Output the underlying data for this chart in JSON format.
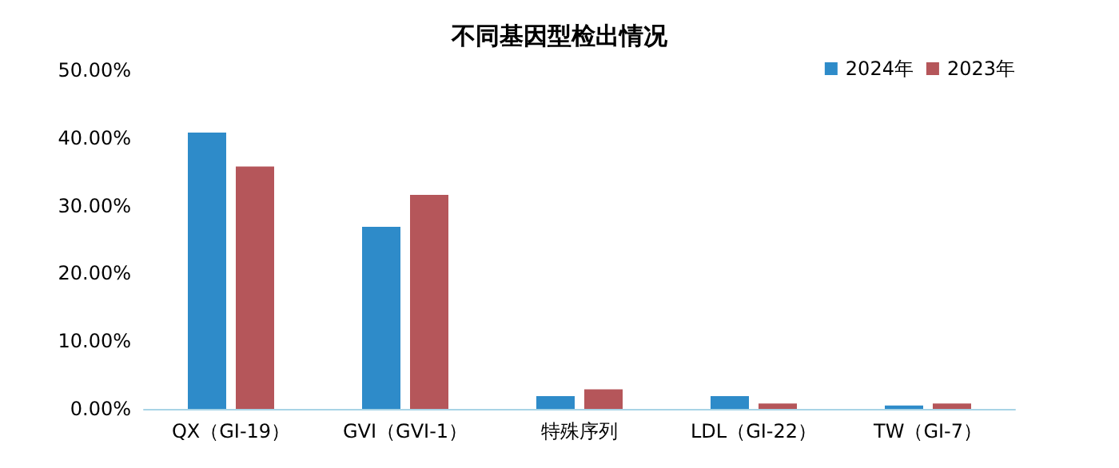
{
  "chart_data": {
    "type": "bar",
    "title": "不同基因型检出情况",
    "categories": [
      "QX（GI-19）",
      "GVI（GVI-1）",
      "特殊序列",
      "LDL（GI-22）",
      "TW（GI-7）"
    ],
    "series": [
      {
        "name": "2024年",
        "color": "#2e8bc9",
        "values": [
          40.8,
          26.9,
          1.9,
          1.9,
          0.5
        ]
      },
      {
        "name": "2023年",
        "color": "#b5565a",
        "values": [
          35.8,
          31.6,
          2.9,
          0.8,
          0.8
        ]
      }
    ],
    "ylim": [
      0,
      50
    ],
    "yticks": [
      {
        "value": 0,
        "label": "0.00%"
      },
      {
        "value": 10,
        "label": "10.00%"
      },
      {
        "value": 20,
        "label": "20.00%"
      },
      {
        "value": 30,
        "label": "30.00%"
      },
      {
        "value": 40,
        "label": "40.00%"
      },
      {
        "value": 50,
        "label": "50.00%"
      }
    ],
    "grid": false,
    "legend": "top right"
  }
}
